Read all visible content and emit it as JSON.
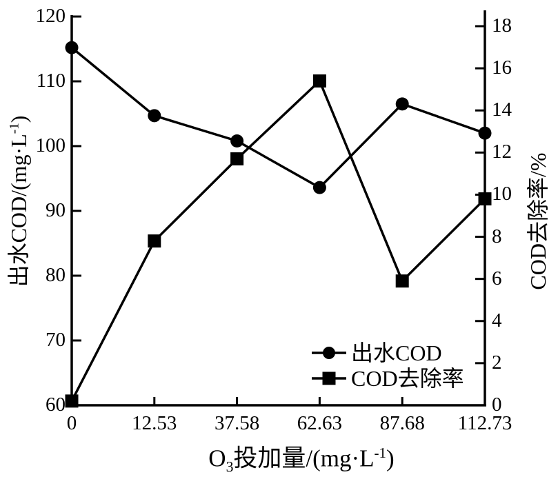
{
  "chart_data": {
    "type": "line",
    "title": "",
    "categories": [
      "0",
      "12.53",
      "37.58",
      "62.63",
      "87.68",
      "112.73"
    ],
    "x_values": [
      0,
      12.53,
      37.58,
      62.63,
      87.68,
      112.73
    ],
    "series": [
      {
        "name": "出水COD",
        "axis": "left",
        "marker": "circle",
        "color": "#000000",
        "values": [
          115.2,
          104.7,
          100.8,
          93.6,
          106.5,
          102.0
        ]
      },
      {
        "name": "COD去除率",
        "axis": "right",
        "marker": "square",
        "color": "#000000",
        "values": [
          0.2,
          7.8,
          11.7,
          15.4,
          5.9,
          9.8
        ]
      }
    ],
    "left_axis": {
      "label": "出水COD/(mg·L⁻¹)",
      "label_main": "出水COD/(mg·L",
      "label_sup": "-1",
      "label_close": ")",
      "min": 60,
      "max": 120,
      "tick_step": 10,
      "ticks": [
        "120",
        "110",
        "100",
        "90",
        "80",
        "70",
        "60"
      ]
    },
    "right_axis": {
      "label": "COD去除率/%",
      "min": 0,
      "max": 18,
      "tick_step": 2,
      "ticks": [
        "18",
        "16",
        "14",
        "12",
        "10",
        "8",
        "6",
        "4",
        "2",
        "0"
      ]
    },
    "x_axis": {
      "label": "O₃投加量/(mg·L⁻¹)",
      "label_o": "O",
      "label_sub": "3",
      "label_mid": "投加量/(mg·L",
      "label_sup": "-1",
      "label_close": ")"
    },
    "legend": {
      "position": "inside-lower-right",
      "items": [
        {
          "label": "出水COD",
          "marker": "circle"
        },
        {
          "label": "COD去除率",
          "marker": "square"
        }
      ]
    },
    "grid": false,
    "colors": {
      "foreground": "#000000",
      "background": "#ffffff"
    }
  }
}
